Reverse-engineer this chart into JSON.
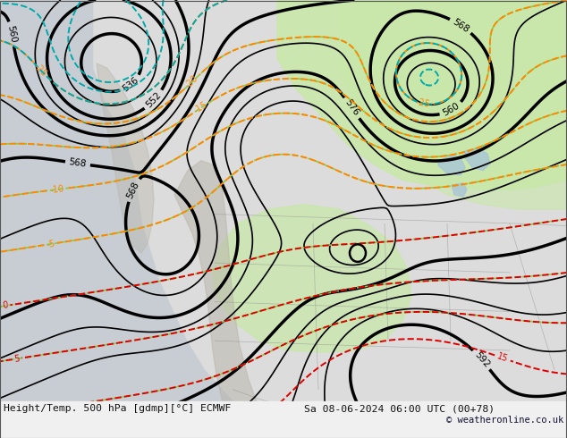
{
  "title_left": "Height/Temp. 500 hPa [gdmp][°C] ECMWF",
  "title_right": "Sa 08-06-2024 06:00 UTC (00+78)",
  "copyright": "© weatheronline.co.uk",
  "fig_width": 6.34,
  "fig_height": 4.9,
  "dpi": 100,
  "ocean_color": "#c8cdd4",
  "land_color": "#dcdcdc",
  "green_color": "#c8e8a8",
  "gray_terrain_color": "#b8b4a8",
  "geo_color": "#000000",
  "temp_orange_color": "#ff8800",
  "temp_red_color": "#dd0000",
  "temp_cyan_color": "#00aaaa",
  "temp_green_color": "#88cc44",
  "border_color": "#888888",
  "geo_linewidth": 1.8,
  "temp_linewidth": 1.4,
  "geo_levels": [
    536,
    544,
    552,
    556,
    560,
    564,
    568,
    572,
    576,
    578,
    580,
    584,
    586,
    588,
    590,
    592
  ],
  "temp_orange_levels": [
    -30,
    -25,
    -20,
    -15,
    -10,
    -5
  ],
  "temp_red_levels": [
    0,
    5,
    10,
    15
  ],
  "temp_cyan_levels": [
    -30,
    -25
  ],
  "temp_green_levels": [
    -20,
    -15,
    -10,
    -5,
    0,
    5,
    10,
    15
  ]
}
